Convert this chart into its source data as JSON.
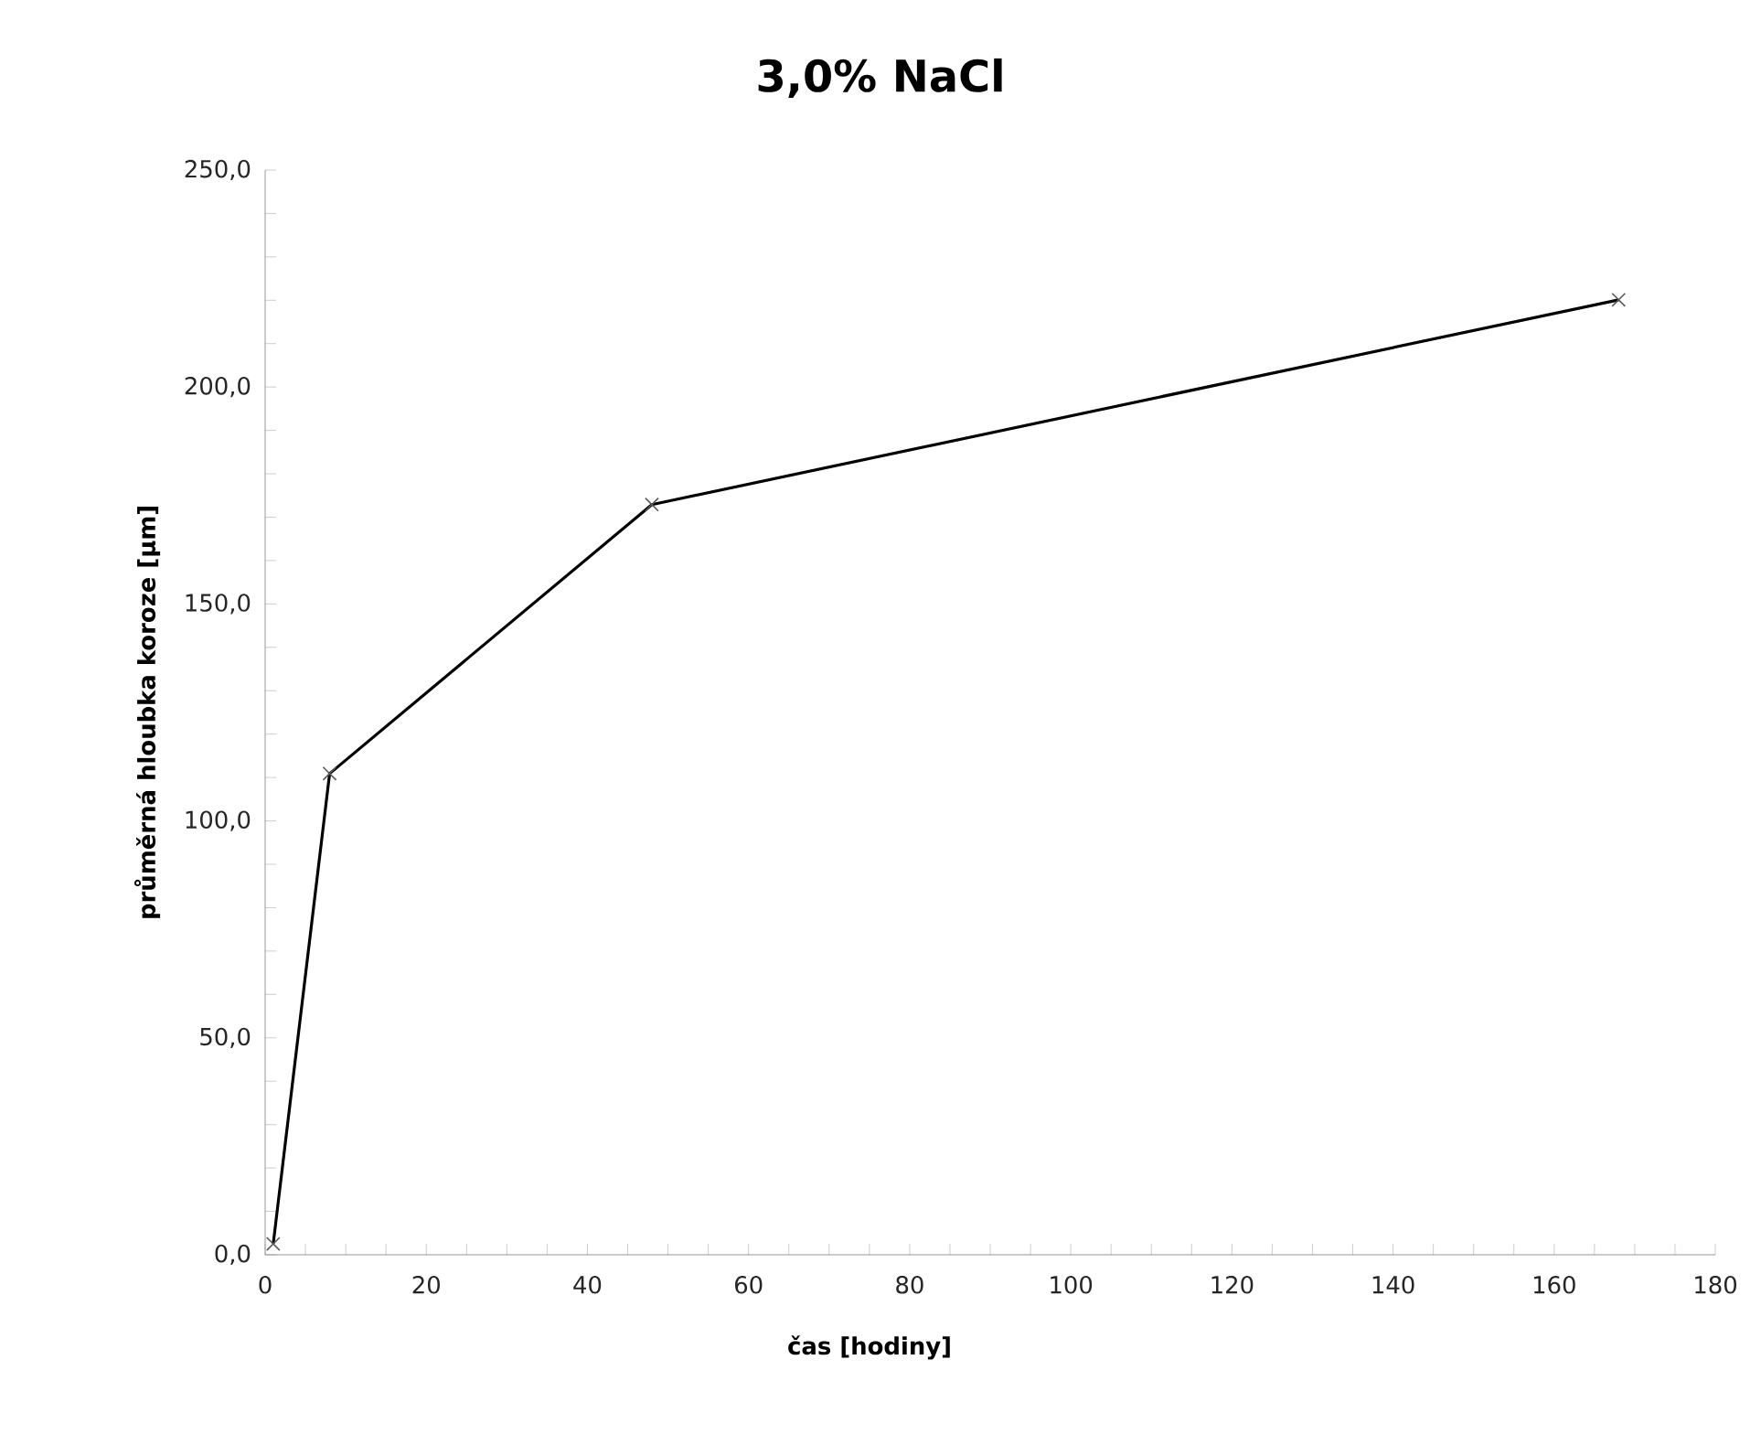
{
  "chart_data": {
    "type": "line",
    "title": "3,0% NaCl",
    "xlabel": "čas [hodiny]",
    "ylabel": "průměrná hloubka koroze [µm]",
    "x": [
      1,
      8,
      48,
      168
    ],
    "series": [
      {
        "color": "#000000",
        "values": [
          2.5,
          110.9,
          172.9,
          220.1
        ]
      }
    ],
    "xlim": [
      0,
      180
    ],
    "xticks": [
      0,
      20,
      40,
      60,
      80,
      100,
      120,
      140,
      160,
      180
    ],
    "ylim": [
      0,
      250
    ],
    "yticks": [
      {
        "value": 0,
        "label": "0,0"
      },
      {
        "value": 50,
        "label": "50,0"
      },
      {
        "value": 100,
        "label": "100,0"
      },
      {
        "value": 150,
        "label": "150,0"
      },
      {
        "value": 200,
        "label": "200,0"
      },
      {
        "value": 250,
        "label": "250,0"
      }
    ],
    "grid": false,
    "marker": "cross",
    "line_style": "solid"
  }
}
